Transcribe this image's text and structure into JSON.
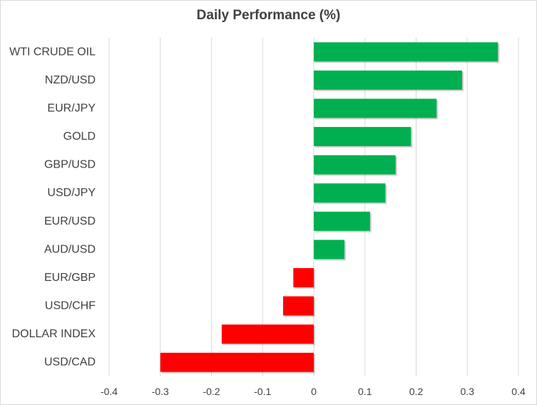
{
  "chart_data": {
    "type": "bar",
    "orientation": "horizontal",
    "title": "Daily Performance (%)",
    "xlabel": "",
    "ylabel": "",
    "categories": [
      "WTI CRUDE OIL",
      "NZD/USD",
      "EUR/JPY",
      "GOLD",
      "GBP/USD",
      "USD/JPY",
      "EUR/USD",
      "AUD/USD",
      "EUR/GBP",
      "USD/CHF",
      "DOLLAR INDEX",
      "USD/CAD"
    ],
    "values": [
      0.36,
      0.29,
      0.24,
      0.19,
      0.16,
      0.14,
      0.11,
      0.06,
      -0.04,
      -0.06,
      -0.18,
      -0.3
    ],
    "xlim": [
      -0.4,
      0.4
    ],
    "xticks": [
      "-0.4",
      "-0.3",
      "-0.2",
      "-0.1",
      "0",
      "0.1",
      "0.2",
      "0.3",
      "0.4"
    ],
    "grid": true,
    "legend": "none",
    "colors": {
      "positive": "#00b050",
      "negative": "#ff0000",
      "grid": "#d9d9d9"
    }
  }
}
